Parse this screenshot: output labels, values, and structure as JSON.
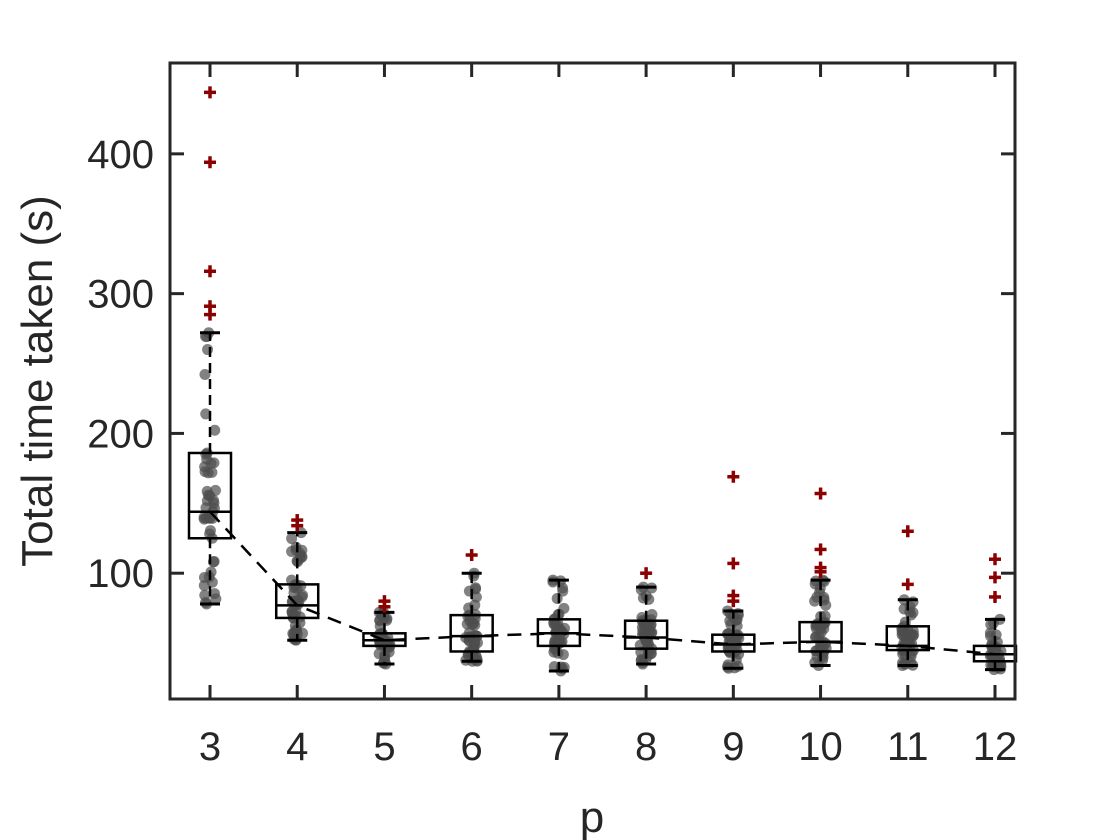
{
  "chart_data": {
    "type": "box",
    "xlabel": "p",
    "ylabel": "Total time taken (s)",
    "categories": [
      "3",
      "4",
      "5",
      "6",
      "7",
      "8",
      "9",
      "10",
      "11",
      "12"
    ],
    "ylim": [
      10,
      465
    ],
    "yticks": [
      100,
      200,
      300,
      400
    ],
    "grid": false,
    "median_line": "dashed black line connecting medians",
    "colors": {
      "axis": "#262626",
      "box": "#000000",
      "points": "#4d4d4d",
      "outliers": "#8b0000"
    },
    "boxes": [
      {
        "p": "3",
        "q1": 125,
        "median": 144,
        "q3": 186,
        "whisker_low": 78,
        "whisker_high": 272,
        "outliers": [
          285,
          291,
          316,
          394,
          444
        ]
      },
      {
        "p": "4",
        "q1": 68,
        "median": 77,
        "q3": 92,
        "whisker_low": 52,
        "whisker_high": 129,
        "outliers": [
          134,
          138
        ]
      },
      {
        "p": "5",
        "q1": 48,
        "median": 52,
        "q3": 57,
        "whisker_low": 35,
        "whisker_high": 72,
        "outliers": [
          76,
          80
        ]
      },
      {
        "p": "6",
        "q1": 44,
        "median": 55,
        "q3": 70,
        "whisker_low": 37,
        "whisker_high": 100,
        "outliers": [
          113
        ]
      },
      {
        "p": "7",
        "q1": 48,
        "median": 57,
        "q3": 67,
        "whisker_low": 30,
        "whisker_high": 95,
        "outliers": []
      },
      {
        "p": "8",
        "q1": 46,
        "median": 54,
        "q3": 66,
        "whisker_low": 35,
        "whisker_high": 90,
        "outliers": [
          100
        ]
      },
      {
        "p": "9",
        "q1": 44,
        "median": 49,
        "q3": 56,
        "whisker_low": 32,
        "whisker_high": 73,
        "outliers": [
          80,
          84,
          107,
          169
        ]
      },
      {
        "p": "10",
        "q1": 44,
        "median": 51,
        "q3": 65,
        "whisker_low": 34,
        "whisker_high": 95,
        "outliers": [
          101,
          104,
          117,
          157
        ]
      },
      {
        "p": "11",
        "q1": 45,
        "median": 48,
        "q3": 62,
        "whisker_low": 34,
        "whisker_high": 81,
        "outliers": [
          92,
          130
        ]
      },
      {
        "p": "12",
        "q1": 37,
        "median": 42,
        "q3": 48,
        "whisker_low": 31,
        "whisker_high": 67,
        "outliers": [
          83,
          97,
          110
        ]
      }
    ]
  }
}
